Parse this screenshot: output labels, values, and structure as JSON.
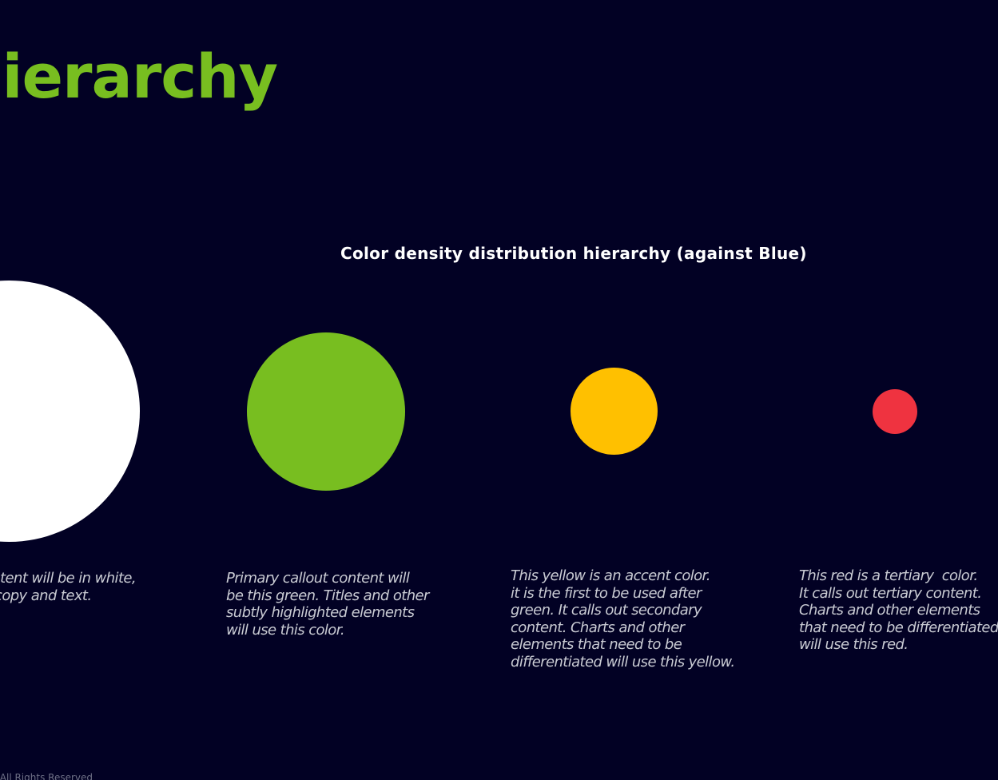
{
  "title": "Color hierarchy",
  "subtitle": "Color density distribution hierarchy (against Blue)",
  "colors": {
    "background": "#020124",
    "white": "#ffffff",
    "green": "#78be20",
    "yellow": "#ffc000",
    "red": "#ef3340"
  },
  "swatches": [
    {
      "color_name": "white",
      "color": "#ffffff",
      "description": "Most content will be in white,\nsuch as copy and text."
    },
    {
      "color_name": "green",
      "color": "#78be20",
      "description": "Primary callout content will\nbe this green. Titles and other\nsubtly highlighted elements\nwill use this color."
    },
    {
      "color_name": "yellow",
      "color": "#ffc000",
      "description": "This yellow is an accent color.\nit is the first to be used after\ngreen. It calls out secondary\ncontent. Charts and other\nelements that need to be\ndifferentiated will use this yellow."
    },
    {
      "color_name": "red",
      "color": "#ef3340",
      "description": "This red is a tertiary  color.\nIt calls out tertiary content.\nCharts and other elements\nthat need to be differentiated\nwill use this red."
    }
  ],
  "footer": "All Rights Reserved"
}
